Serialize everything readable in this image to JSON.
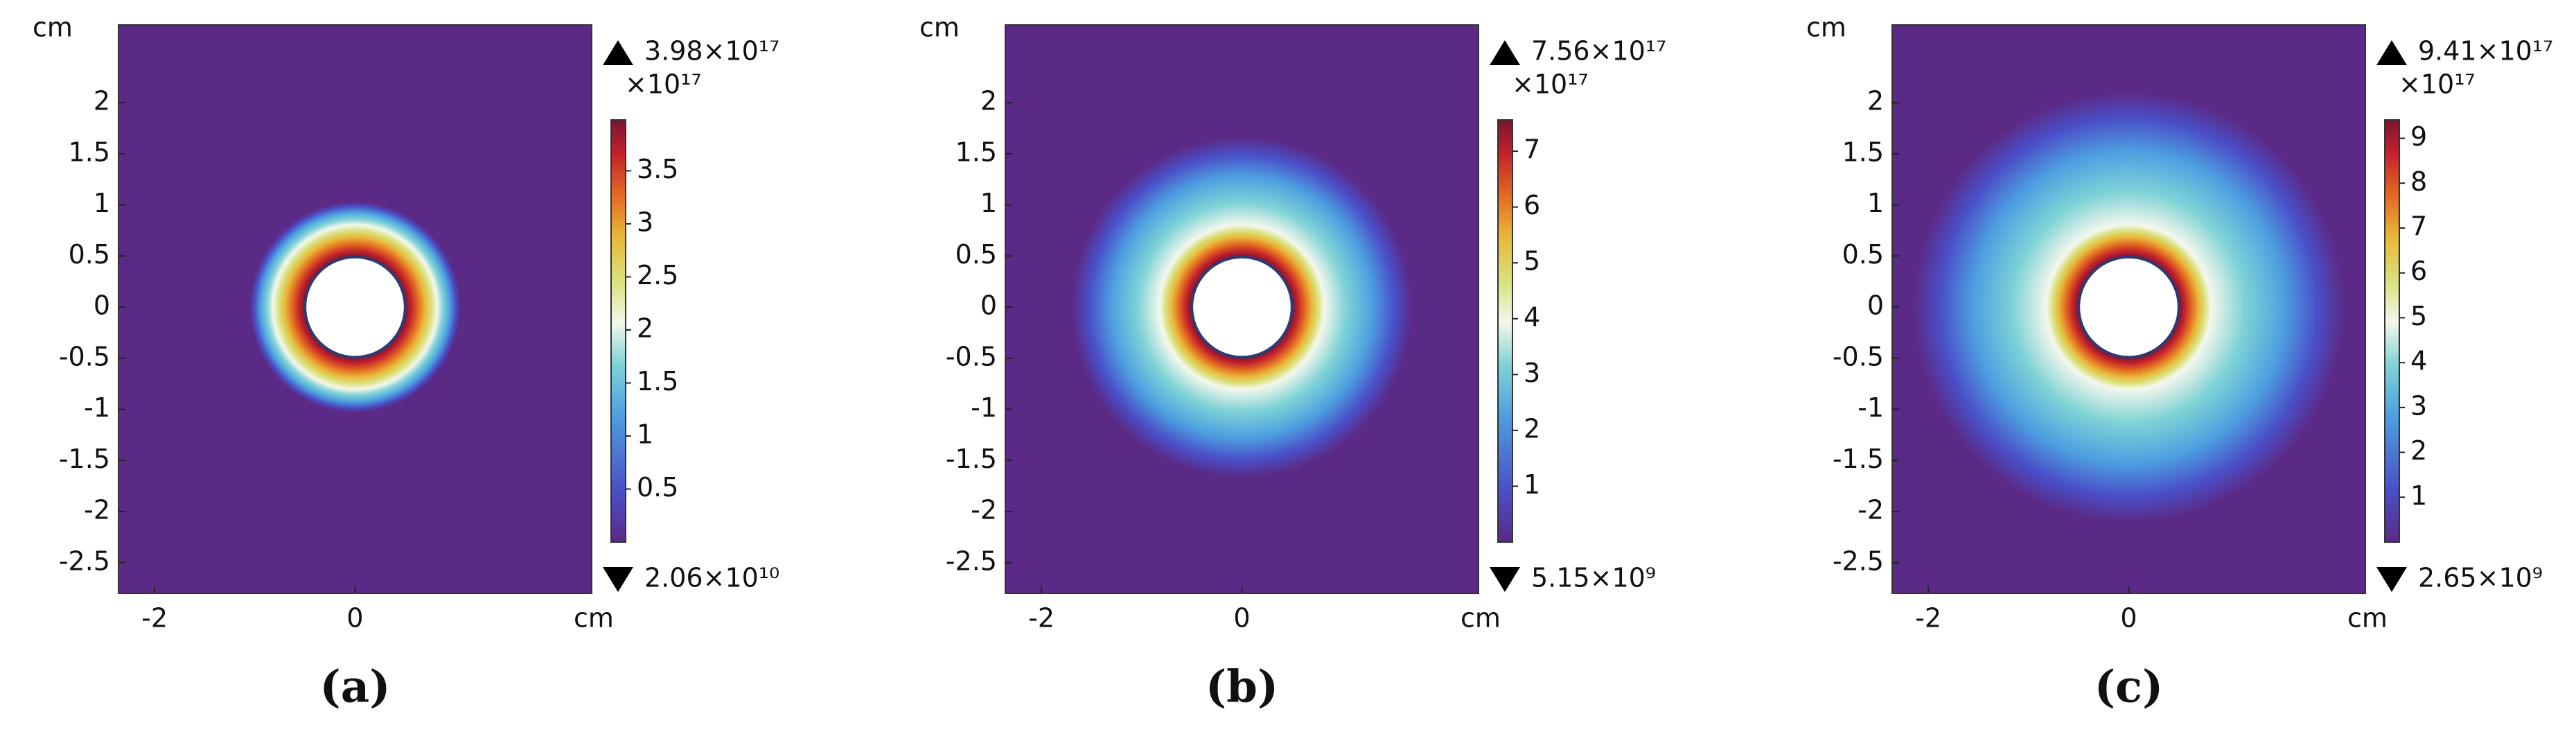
{
  "chart_data": [
    {
      "type": "heatmap",
      "panel_label": "(a)",
      "x_unit": "cm",
      "y_unit": "cm",
      "xlim": [
        -2.36,
        2.36
      ],
      "ylim": [
        -2.8,
        2.76
      ],
      "xticks": [
        -2,
        0
      ],
      "yticks": [
        -2.5,
        -2,
        -1.5,
        -1,
        -0.5,
        0,
        0.5,
        1,
        1.5,
        2
      ],
      "colorbar_scale": "×10¹⁷",
      "max": {
        "value": 3.98e+17,
        "label": "3.98×10¹⁷"
      },
      "min": {
        "value": 20600000000.0,
        "label": "2.06×10¹⁰"
      },
      "colorbar_ticks": [
        {
          "value": 5e+16,
          "label": "0.5"
        },
        {
          "value": 1e+17,
          "label": "1"
        },
        {
          "value": 1.5e+17,
          "label": "1.5"
        },
        {
          "value": 2e+17,
          "label": "2"
        },
        {
          "value": 2.5e+17,
          "label": "2.5"
        },
        {
          "value": 3e+17,
          "label": "3"
        },
        {
          "value": 3.5e+17,
          "label": "3.5"
        }
      ]
    },
    {
      "type": "heatmap",
      "panel_label": "(b)",
      "x_unit": "cm",
      "y_unit": "cm",
      "xlim": [
        -2.36,
        2.36
      ],
      "ylim": [
        -2.8,
        2.76
      ],
      "xticks": [
        -2,
        0
      ],
      "yticks": [
        -2.5,
        -2,
        -1.5,
        -1,
        -0.5,
        0,
        0.5,
        1,
        1.5,
        2
      ],
      "colorbar_scale": "×10¹⁷",
      "max": {
        "value": 7.56e+17,
        "label": "7.56×10¹⁷"
      },
      "min": {
        "value": 5150000000.0,
        "label": "5.15×10⁹"
      },
      "colorbar_ticks": [
        {
          "value": 1e+17,
          "label": "1"
        },
        {
          "value": 2e+17,
          "label": "2"
        },
        {
          "value": 3e+17,
          "label": "3"
        },
        {
          "value": 4e+17,
          "label": "4"
        },
        {
          "value": 5e+17,
          "label": "5"
        },
        {
          "value": 6e+17,
          "label": "6"
        },
        {
          "value": 7e+17,
          "label": "7"
        }
      ]
    },
    {
      "type": "heatmap",
      "panel_label": "(c)",
      "x_unit": "cm",
      "y_unit": "cm",
      "xlim": [
        -2.36,
        2.36
      ],
      "ylim": [
        -2.8,
        2.76
      ],
      "xticks": [
        -2,
        0
      ],
      "yticks": [
        -2.5,
        -2,
        -1.5,
        -1,
        -0.5,
        0,
        0.5,
        1,
        1.5,
        2
      ],
      "colorbar_scale": "×10¹⁷",
      "max": {
        "value": 9.41e+17,
        "label": "9.41×10¹⁷"
      },
      "min": {
        "value": 2650000000.0,
        "label": "2.65×10⁹"
      },
      "colorbar_ticks": [
        {
          "value": 1e+17,
          "label": "1"
        },
        {
          "value": 2e+17,
          "label": "2"
        },
        {
          "value": 3e+17,
          "label": "3"
        },
        {
          "value": 4e+17,
          "label": "4"
        },
        {
          "value": 5e+17,
          "label": "5"
        },
        {
          "value": 6e+17,
          "label": "6"
        },
        {
          "value": 7e+17,
          "label": "7"
        },
        {
          "value": 8e+17,
          "label": "8"
        },
        {
          "value": 9e+17,
          "label": "9"
        }
      ]
    }
  ]
}
